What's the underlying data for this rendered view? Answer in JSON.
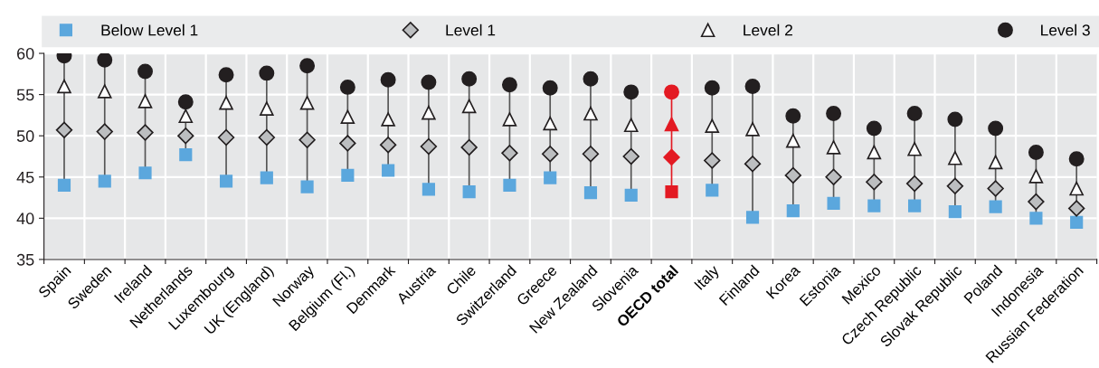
{
  "chart_data": {
    "type": "scatter",
    "categories": [
      "Spain",
      "Sweden",
      "Ireland",
      "Netherlands",
      "Luxembourg",
      "UK (England)",
      "Norway",
      "Belgium (Fl.)",
      "Denmark",
      "Austria",
      "Chile",
      "Switzerland",
      "Greece",
      "New Zealand",
      "Slovenia",
      "OECD total",
      "Italy",
      "Finland",
      "Korea",
      "Estonia",
      "Mexico",
      "Czech Republic",
      "Slovak Republic",
      "Poland",
      "Indonesia",
      "Russian Federation"
    ],
    "series": [
      {
        "name": "Below Level 1",
        "color": "#5ba7dd",
        "marker": "square",
        "colors": [
          "#5ba7dd",
          "#5ba7dd",
          "#5ba7dd",
          "#5ba7dd",
          "#5ba7dd",
          "#5ba7dd",
          "#5ba7dd",
          "#5ba7dd",
          "#5ba7dd",
          "#5ba7dd",
          "#5ba7dd",
          "#5ba7dd",
          "#5ba7dd",
          "#5ba7dd",
          "#5ba7dd",
          "#e31a23",
          "#5ba7dd",
          "#5ba7dd",
          "#5ba7dd",
          "#5ba7dd",
          "#5ba7dd",
          "#5ba7dd",
          "#5ba7dd",
          "#5ba7dd",
          "#5ba7dd",
          "#5ba7dd"
        ],
        "values": [
          44.0,
          44.5,
          45.5,
          47.7,
          44.5,
          44.9,
          43.8,
          45.2,
          45.8,
          43.5,
          43.2,
          44.0,
          44.9,
          43.1,
          42.8,
          43.2,
          43.4,
          40.1,
          40.9,
          41.8,
          41.5,
          41.5,
          40.8,
          41.4,
          40.0,
          39.5
        ]
      },
      {
        "name": "Level 1",
        "color": "#bcbec0",
        "marker": "diamond",
        "colors": [
          "#bcbec0",
          "#bcbec0",
          "#bcbec0",
          "#bcbec0",
          "#bcbec0",
          "#bcbec0",
          "#bcbec0",
          "#bcbec0",
          "#bcbec0",
          "#bcbec0",
          "#bcbec0",
          "#bcbec0",
          "#bcbec0",
          "#bcbec0",
          "#bcbec0",
          "#e31a23",
          "#bcbec0",
          "#bcbec0",
          "#bcbec0",
          "#bcbec0",
          "#bcbec0",
          "#bcbec0",
          "#bcbec0",
          "#bcbec0",
          "#bcbec0",
          "#bcbec0"
        ],
        "values": [
          50.7,
          50.5,
          50.4,
          50.0,
          49.8,
          49.8,
          49.5,
          49.1,
          48.9,
          48.7,
          48.6,
          47.9,
          47.8,
          47.8,
          47.5,
          47.4,
          47.0,
          46.6,
          45.2,
          45.0,
          44.4,
          44.2,
          43.9,
          43.6,
          42.0,
          41.2
        ]
      },
      {
        "name": "Level 2",
        "color": "#ffffff",
        "marker": "triangle",
        "colors": [
          "#ffffff",
          "#ffffff",
          "#ffffff",
          "#ffffff",
          "#ffffff",
          "#ffffff",
          "#ffffff",
          "#ffffff",
          "#ffffff",
          "#ffffff",
          "#ffffff",
          "#ffffff",
          "#ffffff",
          "#ffffff",
          "#ffffff",
          "#e31a23",
          "#ffffff",
          "#ffffff",
          "#ffffff",
          "#ffffff",
          "#ffffff",
          "#ffffff",
          "#ffffff",
          "#ffffff",
          "#ffffff",
          "#ffffff"
        ],
        "values": [
          56.0,
          55.4,
          54.2,
          52.4,
          54.0,
          53.3,
          54.0,
          52.3,
          52.0,
          52.8,
          53.6,
          52.0,
          51.5,
          52.7,
          51.3,
          51.4,
          51.2,
          50.8,
          49.4,
          48.6,
          48.0,
          48.4,
          47.3,
          46.8,
          45.1,
          43.6
        ]
      },
      {
        "name": "Level 3",
        "color": "#231f20",
        "marker": "circle",
        "colors": [
          "#231f20",
          "#231f20",
          "#231f20",
          "#231f20",
          "#231f20",
          "#231f20",
          "#231f20",
          "#231f20",
          "#231f20",
          "#231f20",
          "#231f20",
          "#231f20",
          "#231f20",
          "#231f20",
          "#231f20",
          "#e31a23",
          "#231f20",
          "#231f20",
          "#231f20",
          "#231f20",
          "#231f20",
          "#231f20",
          "#231f20",
          "#231f20",
          "#231f20",
          "#231f20"
        ],
        "values": [
          59.7,
          59.2,
          57.8,
          54.1,
          57.4,
          57.6,
          58.5,
          55.9,
          56.8,
          56.5,
          56.9,
          56.2,
          55.8,
          56.9,
          55.3,
          55.3,
          55.8,
          56.0,
          52.4,
          52.7,
          50.9,
          52.7,
          52.0,
          50.9,
          48.0,
          47.2
        ]
      }
    ],
    "ylim": [
      35,
      60
    ],
    "yticks": [
      35,
      40,
      45,
      50,
      55,
      60
    ],
    "grid": true,
    "legend": "top"
  }
}
